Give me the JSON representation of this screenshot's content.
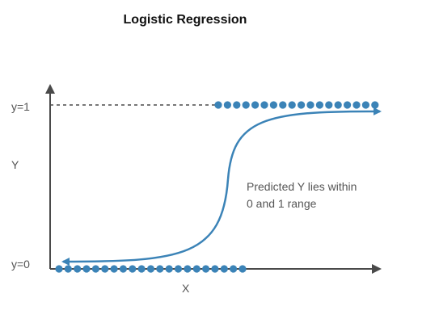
{
  "title": "Logistic Regression",
  "y_axis_label": "Y",
  "x_axis_label": "X",
  "y1_label": "y=1",
  "y0_label": "y=0",
  "annotation": [
    "Predicted Y lies within",
    "0 and 1 range"
  ],
  "colors": {
    "dots": "#3b83b7",
    "curve": "#3b83b7",
    "axis": "#4a4a4a",
    "reference_line": "#4a4a4a",
    "text": "#555555",
    "title": "#111111"
  },
  "chart_data": {
    "type": "scatter",
    "title": "Logistic Regression",
    "xlabel": "X",
    "ylabel": "Y",
    "y_ticks": [
      "y=0",
      "y=1"
    ],
    "series": [
      {
        "name": "",
        "y": 1,
        "count": 18
      },
      {
        "name": "",
        "y": 0,
        "count": 21
      }
    ],
    "curve": "sigmoid"
  }
}
